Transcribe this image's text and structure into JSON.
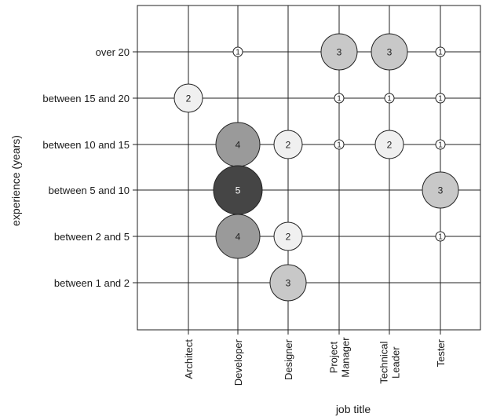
{
  "chart_data": {
    "type": "scatter",
    "subtype": "bubble",
    "title": "",
    "xlabel": "job title",
    "ylabel": "experience (years)",
    "x_categories": [
      "Architect",
      "Developer",
      "Designer",
      "Project Manager",
      "Technical Leader",
      "Tester"
    ],
    "y_categories": [
      "over 20",
      "between 15 and 20",
      "between 10 and 15",
      "between 5 and 10",
      "between 2 and 5",
      "between 1 and 2"
    ],
    "grid": true,
    "legend": "none",
    "size_encoding": "count",
    "color_encoding": "count (darker = larger)",
    "points": [
      {
        "x": "Developer",
        "y": "over 20",
        "value": 1
      },
      {
        "x": "Project Manager",
        "y": "over 20",
        "value": 3
      },
      {
        "x": "Technical Leader",
        "y": "over 20",
        "value": 3
      },
      {
        "x": "Tester",
        "y": "over 20",
        "value": 1
      },
      {
        "x": "Architect",
        "y": "between 15 and 20",
        "value": 2
      },
      {
        "x": "Project Manager",
        "y": "between 15 and 20",
        "value": 1
      },
      {
        "x": "Technical Leader",
        "y": "between 15 and 20",
        "value": 1
      },
      {
        "x": "Tester",
        "y": "between 15 and 20",
        "value": 1
      },
      {
        "x": "Developer",
        "y": "between 10 and 15",
        "value": 4
      },
      {
        "x": "Designer",
        "y": "between 10 and 15",
        "value": 2
      },
      {
        "x": "Project Manager",
        "y": "between 10 and 15",
        "value": 1
      },
      {
        "x": "Technical Leader",
        "y": "between 10 and 15",
        "value": 2
      },
      {
        "x": "Tester",
        "y": "between 10 and 15",
        "value": 1
      },
      {
        "x": "Developer",
        "y": "between 5 and 10",
        "value": 5
      },
      {
        "x": "Tester",
        "y": "between 5 and 10",
        "value": 3
      },
      {
        "x": "Developer",
        "y": "between 2 and 5",
        "value": 4
      },
      {
        "x": "Designer",
        "y": "between 2 and 5",
        "value": 2
      },
      {
        "x": "Tester",
        "y": "between 2 and 5",
        "value": 1
      },
      {
        "x": "Designer",
        "y": "between 1 and 2",
        "value": 3
      }
    ],
    "colors": {
      "1": "#ffffff",
      "2": "#f0f0f0",
      "3": "#c8c8c8",
      "4": "#9a9a9a",
      "5": "#454545"
    },
    "label_colors": {
      "light": "#222222",
      "dark": "#ffffff"
    }
  }
}
